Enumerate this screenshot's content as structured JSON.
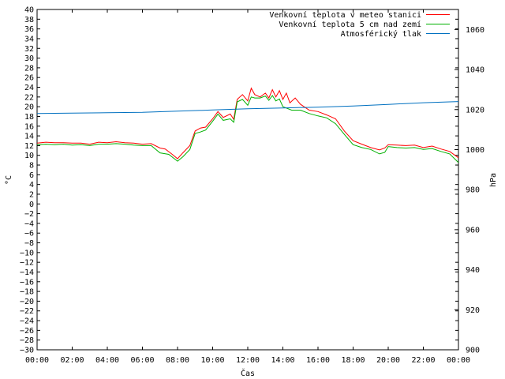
{
  "chart_data": {
    "type": "line",
    "xlabel": "Čas",
    "ylabel_left": "°C",
    "ylabel_right": "hPa",
    "x_ticks": [
      "00:00",
      "02:00",
      "04:00",
      "06:00",
      "08:00",
      "10:00",
      "12:00",
      "14:00",
      "16:00",
      "18:00",
      "20:00",
      "22:00",
      "00:00"
    ],
    "xlim": [
      0,
      24
    ],
    "ylim_left": [
      -30,
      40
    ],
    "ylim_right": [
      900,
      1070
    ],
    "y_left_ticks": [
      40,
      38,
      36,
      34,
      32,
      30,
      28,
      26,
      24,
      22,
      20,
      18,
      16,
      14,
      12,
      10,
      8,
      6,
      4,
      2,
      0,
      -2,
      -4,
      -6,
      -8,
      -10,
      -12,
      -14,
      -16,
      -18,
      -20,
      -22,
      -24,
      -26,
      -28,
      -30
    ],
    "y_left_tick_labels": [
      "40",
      "38",
      "36",
      "34",
      "32",
      "30",
      "28",
      "26",
      "24",
      "22",
      "20",
      "18",
      "16",
      "14",
      "12",
      "10",
      "8",
      "6",
      "4",
      "2",
      "0",
      "−2",
      "−4",
      "−6",
      "−8",
      "−10",
      "−12",
      "−14",
      "−16",
      "−18",
      "−20",
      "−22",
      "−24",
      "−26",
      "−28",
      "−30"
    ],
    "y_right_ticks": [
      1060,
      1040,
      1020,
      1000,
      980,
      960,
      940,
      920,
      900
    ],
    "y_right_tick_labels": [
      "1060",
      "1040",
      "1020",
      "1000",
      "980",
      "960",
      "940",
      "920",
      "900"
    ],
    "legend_position": "top-right",
    "series": [
      {
        "name": "Venkovní teplota v meteo stanici",
        "color": "#ff0000",
        "axis": "left",
        "points": [
          [
            0,
            12.5
          ],
          [
            0.5,
            12.7
          ],
          [
            1,
            12.6
          ],
          [
            1.5,
            12.6
          ],
          [
            2,
            12.5
          ],
          [
            2.5,
            12.5
          ],
          [
            3,
            12.3
          ],
          [
            3.5,
            12.7
          ],
          [
            4,
            12.6
          ],
          [
            4.5,
            12.8
          ],
          [
            5,
            12.6
          ],
          [
            5.5,
            12.5
          ],
          [
            6,
            12.3
          ],
          [
            6.5,
            12.4
          ],
          [
            7,
            11.5
          ],
          [
            7.3,
            11.3
          ],
          [
            7.7,
            10.2
          ],
          [
            8,
            9.3
          ],
          [
            8.3,
            10.5
          ],
          [
            8.7,
            12
          ],
          [
            9,
            15
          ],
          [
            9.3,
            15.6
          ],
          [
            9.6,
            15.8
          ],
          [
            10,
            17.5
          ],
          [
            10.3,
            19
          ],
          [
            10.6,
            17.8
          ],
          [
            11,
            18.5
          ],
          [
            11.2,
            17.4
          ],
          [
            11.4,
            21.5
          ],
          [
            11.7,
            22.5
          ],
          [
            12,
            21.2
          ],
          [
            12.2,
            23.8
          ],
          [
            12.4,
            22.5
          ],
          [
            12.7,
            22
          ],
          [
            13,
            22.8
          ],
          [
            13.2,
            21.8
          ],
          [
            13.4,
            23.5
          ],
          [
            13.6,
            22
          ],
          [
            13.8,
            23.3
          ],
          [
            14,
            21.5
          ],
          [
            14.2,
            22.8
          ],
          [
            14.4,
            20.8
          ],
          [
            14.7,
            21.8
          ],
          [
            15,
            20.5
          ],
          [
            15.5,
            19.3
          ],
          [
            16,
            19
          ],
          [
            16.5,
            18.3
          ],
          [
            17,
            17.5
          ],
          [
            17.5,
            15
          ],
          [
            18,
            13
          ],
          [
            18.5,
            12.3
          ],
          [
            19,
            11.6
          ],
          [
            19.5,
            11.1
          ],
          [
            19.8,
            11.5
          ],
          [
            20,
            12.2
          ],
          [
            20.5,
            12.1
          ],
          [
            21,
            12
          ],
          [
            21.5,
            12.1
          ],
          [
            22,
            11.6
          ],
          [
            22.5,
            11.9
          ],
          [
            23,
            11.3
          ],
          [
            23.5,
            10.8
          ],
          [
            24,
            9.5
          ]
        ]
      },
      {
        "name": "Venkovní teplota 5 cm nad zemí",
        "color": "#00b000",
        "axis": "left",
        "points": [
          [
            0,
            12.2
          ],
          [
            0.5,
            12.3
          ],
          [
            1,
            12.2
          ],
          [
            1.5,
            12.3
          ],
          [
            2,
            12.1
          ],
          [
            2.5,
            12.2
          ],
          [
            3,
            12
          ],
          [
            3.5,
            12.3
          ],
          [
            4,
            12.3
          ],
          [
            4.5,
            12.4
          ],
          [
            5,
            12.3
          ],
          [
            5.5,
            12.1
          ],
          [
            6,
            12
          ],
          [
            6.5,
            12
          ],
          [
            7,
            10.5
          ],
          [
            7.5,
            10.2
          ],
          [
            8,
            8.8
          ],
          [
            8.3,
            9.7
          ],
          [
            8.7,
            11.2
          ],
          [
            9,
            14.5
          ],
          [
            9.3,
            14.8
          ],
          [
            9.6,
            15.2
          ],
          [
            10,
            17
          ],
          [
            10.3,
            18.5
          ],
          [
            10.6,
            17.2
          ],
          [
            11,
            17.5
          ],
          [
            11.2,
            16.8
          ],
          [
            11.4,
            21
          ],
          [
            11.7,
            21.5
          ],
          [
            12,
            20.3
          ],
          [
            12.2,
            22
          ],
          [
            12.4,
            21.8
          ],
          [
            12.7,
            21.8
          ],
          [
            13,
            22.2
          ],
          [
            13.2,
            21.3
          ],
          [
            13.4,
            22.3
          ],
          [
            13.6,
            21.2
          ],
          [
            13.8,
            21.6
          ],
          [
            14,
            20
          ],
          [
            14.5,
            19.3
          ],
          [
            15,
            19.3
          ],
          [
            15.5,
            18.6
          ],
          [
            16,
            18.1
          ],
          [
            16.5,
            17.7
          ],
          [
            17,
            16.5
          ],
          [
            17.5,
            14.3
          ],
          [
            18,
            12.2
          ],
          [
            18.5,
            11.6
          ],
          [
            19,
            11.2
          ],
          [
            19.5,
            10.3
          ],
          [
            19.8,
            10.6
          ],
          [
            20,
            11.8
          ],
          [
            20.5,
            11.6
          ],
          [
            21,
            11.5
          ],
          [
            21.5,
            11.6
          ],
          [
            22,
            11.2
          ],
          [
            22.5,
            11.4
          ],
          [
            23,
            10.8
          ],
          [
            23.5,
            10.3
          ],
          [
            24,
            8.5
          ]
        ]
      },
      {
        "name": "Atmosférický tlak",
        "color": "#0070c0",
        "axis": "right",
        "points": [
          [
            0,
            1018
          ],
          [
            2,
            1018.2
          ],
          [
            4,
            1018.4
          ],
          [
            6,
            1018.6
          ],
          [
            8,
            1019.2
          ],
          [
            10,
            1019.8
          ],
          [
            12,
            1020.4
          ],
          [
            14,
            1020.8
          ],
          [
            16,
            1021.2
          ],
          [
            18,
            1021.8
          ],
          [
            20,
            1022.6
          ],
          [
            22,
            1023.4
          ],
          [
            24,
            1024
          ]
        ]
      }
    ]
  }
}
